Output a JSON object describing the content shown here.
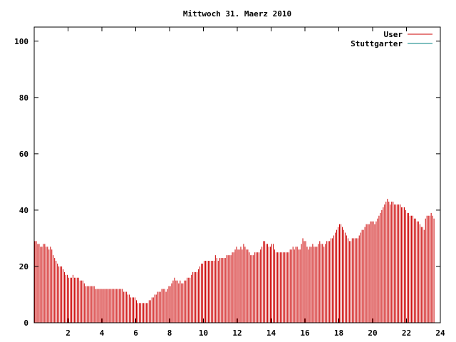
{
  "chart_data": {
    "type": "bar",
    "title": "Mittwoch 31. Maerz 2010",
    "xlabel": "",
    "ylabel": "",
    "xlim": [
      0,
      24
    ],
    "ylim": [
      0,
      105
    ],
    "xticks": [
      2,
      4,
      6,
      8,
      10,
      12,
      14,
      16,
      18,
      20,
      22,
      24
    ],
    "yticks": [
      0,
      20,
      40,
      60,
      80,
      100
    ],
    "grid": false,
    "legend_position": "top-right",
    "series": [
      {
        "name": "User",
        "color": "#cc0000",
        "interval_minutes": 5,
        "values": [
          29,
          29,
          28,
          28,
          27,
          27,
          28,
          28,
          27,
          27,
          26,
          27,
          26,
          24,
          23,
          22,
          21,
          20,
          20,
          20,
          19,
          18,
          17,
          17,
          16,
          16,
          16,
          17,
          16,
          16,
          16,
          16,
          15,
          15,
          15,
          14,
          13,
          13,
          13,
          13,
          13,
          13,
          13,
          12,
          12,
          12,
          12,
          12,
          12,
          12,
          12,
          12,
          12,
          12,
          12,
          12,
          12,
          12,
          12,
          12,
          12,
          12,
          12,
          11,
          11,
          11,
          10,
          10,
          9,
          9,
          9,
          9,
          8,
          7,
          7,
          7,
          7,
          7,
          7,
          7,
          7,
          8,
          8,
          9,
          9,
          10,
          10,
          11,
          11,
          11,
          12,
          12,
          12,
          11,
          12,
          13,
          13,
          14,
          15,
          16,
          15,
          15,
          14,
          15,
          14,
          14,
          15,
          15,
          16,
          16,
          16,
          17,
          18,
          18,
          18,
          18,
          19,
          20,
          21,
          21,
          22,
          22,
          22,
          22,
          22,
          22,
          22,
          22,
          24,
          23,
          22,
          23,
          23,
          23,
          23,
          23,
          24,
          24,
          24,
          24,
          25,
          25,
          26,
          27,
          26,
          26,
          27,
          26,
          28,
          27,
          26,
          26,
          25,
          24,
          24,
          24,
          25,
          25,
          25,
          25,
          26,
          27,
          29,
          29,
          28,
          28,
          27,
          27,
          28,
          28,
          26,
          25,
          25,
          25,
          25,
          25,
          25,
          25,
          25,
          25,
          25,
          26,
          26,
          27,
          26,
          27,
          27,
          26,
          26,
          28,
          30,
          29,
          29,
          27,
          26,
          27,
          27,
          28,
          27,
          27,
          27,
          28,
          29,
          28,
          28,
          27,
          28,
          29,
          29,
          29,
          30,
          30,
          31,
          32,
          33,
          34,
          35,
          35,
          34,
          33,
          32,
          31,
          30,
          29,
          29,
          30,
          30,
          30,
          30,
          30,
          31,
          32,
          33,
          33,
          34,
          35,
          35,
          35,
          36,
          36,
          36,
          35,
          36,
          37,
          38,
          39,
          40,
          41,
          42,
          43,
          44,
          43,
          42,
          43,
          43,
          42,
          42,
          42,
          42,
          42,
          41,
          41,
          41,
          40,
          39,
          39,
          38,
          38,
          38,
          37,
          37,
          36,
          36,
          35,
          34,
          34,
          33,
          37,
          38,
          38,
          38,
          39,
          38,
          37
        ]
      },
      {
        "name": "Stuttgarter",
        "color": "#008080",
        "values": []
      }
    ]
  }
}
